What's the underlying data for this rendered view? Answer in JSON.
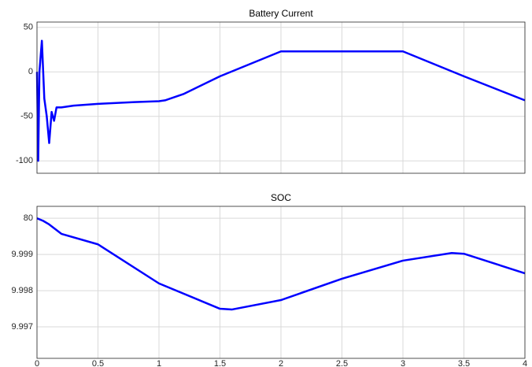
{
  "chart_data": [
    {
      "type": "line",
      "title": "Battery Current",
      "x": [
        0,
        0.01,
        0.02,
        0.04,
        0.06,
        0.08,
        0.1,
        0.12,
        0.14,
        0.16,
        0.2,
        0.3,
        0.5,
        0.8,
        1.0,
        1.05,
        1.2,
        1.5,
        2.0,
        2.02,
        3.0,
        3.5,
        4.0
      ],
      "series": [
        {
          "name": "Battery Current",
          "color": "#0000ff",
          "values": [
            0,
            -100,
            0,
            35,
            -30,
            -50,
            -80,
            -45,
            -55,
            -40,
            -40,
            -38,
            -36,
            -34,
            -33,
            -32,
            -25,
            -5,
            23,
            23,
            23,
            -5,
            -32
          ]
        }
      ],
      "xlim": [
        0,
        4
      ],
      "xticks": [
        0,
        0.5,
        1,
        1.5,
        2,
        2.5,
        3,
        3.5,
        4
      ],
      "ylim": [
        -114,
        56
      ],
      "yticks": [
        -100,
        -50,
        0,
        50
      ],
      "grid": true
    },
    {
      "type": "line",
      "title": "SOC",
      "x": [
        0,
        0.05,
        0.1,
        0.2,
        0.5,
        1.0,
        1.5,
        1.6,
        2.0,
        2.5,
        3.0,
        3.4,
        3.5,
        4.0
      ],
      "series": [
        {
          "name": "SOC",
          "color": "#0000ff",
          "values": [
            80.0,
            79.99993,
            79.99983,
            79.99957,
            79.99928,
            79.9982,
            79.9975,
            79.99748,
            79.99774,
            79.99833,
            79.99883,
            79.99904,
            79.99902,
            79.99848
          ]
        }
      ],
      "xlim": [
        0,
        4
      ],
      "xticks": [
        0,
        0.5,
        1,
        1.5,
        2,
        2.5,
        3,
        3.5,
        4
      ],
      "ylim": [
        79.99613,
        80.00033
      ],
      "yticks": [
        {
          "value": 79.997,
          "label": "9.997"
        },
        {
          "value": 79.998,
          "label": "9.998"
        },
        {
          "value": 79.999,
          "label": "9.999"
        },
        80
      ],
      "grid": true
    }
  ]
}
